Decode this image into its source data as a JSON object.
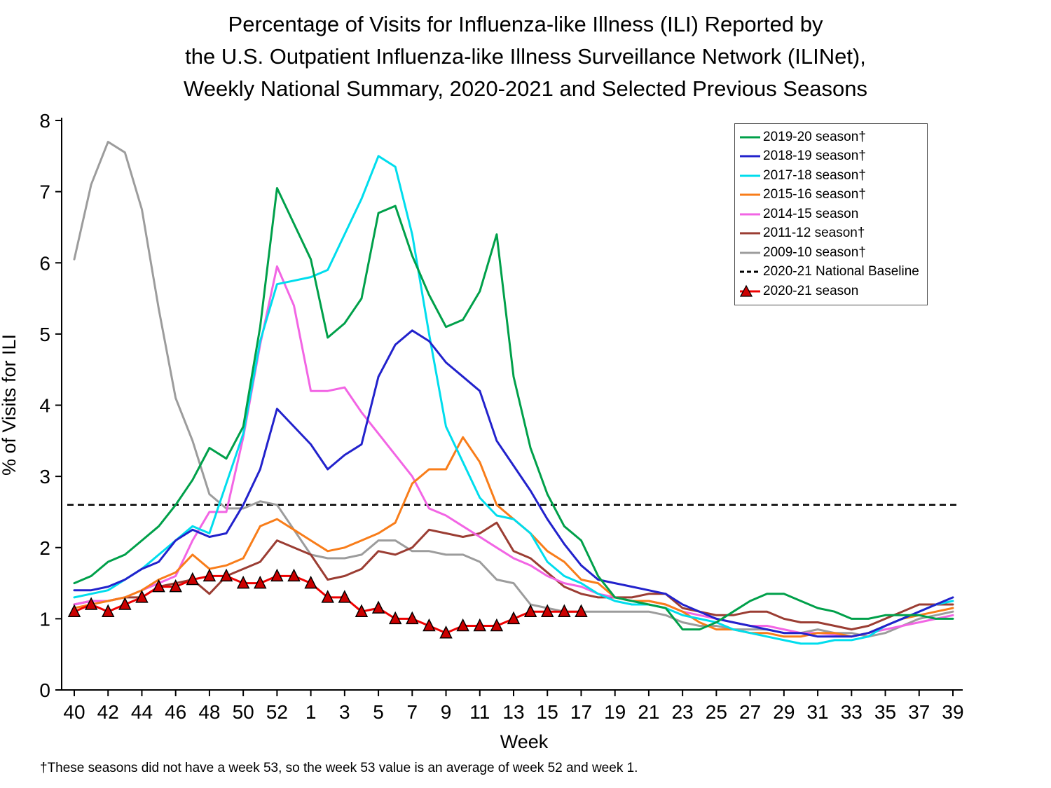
{
  "title": {
    "line1": "Percentage of Visits for Influenza-like Illness (ILI) Reported by",
    "line2": "the U.S. Outpatient Influenza-like Illness Surveillance Network (ILINet),",
    "line3": "Weekly National Summary, 2020-2021 and Selected Previous Seasons"
  },
  "footnote": "†These seasons did not have a week 53, so the week 53 value is an average of week 52 and week 1.",
  "chart_data": {
    "type": "line",
    "xlabel": "Week",
    "ylabel": "% of Visits for ILI",
    "ylim": [
      0,
      8
    ],
    "y_ticks": [
      0,
      1,
      2,
      3,
      4,
      5,
      6,
      7,
      8
    ],
    "grid": false,
    "legend_position": "top-right",
    "weeks": [
      "40",
      "41",
      "42",
      "43",
      "44",
      "45",
      "46",
      "47",
      "48",
      "49",
      "50",
      "51",
      "52",
      "53",
      "1",
      "2",
      "3",
      "4",
      "5",
      "6",
      "7",
      "8",
      "9",
      "10",
      "11",
      "12",
      "13",
      "14",
      "15",
      "16",
      "17",
      "18",
      "19",
      "20",
      "21",
      "22",
      "23",
      "24",
      "25",
      "26",
      "27",
      "28",
      "29",
      "30",
      "31",
      "32",
      "33",
      "34",
      "35",
      "36",
      "37",
      "38",
      "39"
    ],
    "x_tick_labels": [
      "40",
      "42",
      "44",
      "46",
      "48",
      "50",
      "52",
      "1",
      "3",
      "5",
      "7",
      "9",
      "11",
      "13",
      "15",
      "17",
      "19",
      "21",
      "23",
      "25",
      "27",
      "29",
      "31",
      "33",
      "35",
      "37",
      "39"
    ],
    "series": [
      {
        "name": "2019-20 season†",
        "color": "#00a04a",
        "values": [
          1.5,
          1.6,
          1.8,
          1.9,
          2.1,
          2.3,
          2.6,
          2.95,
          3.4,
          3.25,
          3.7,
          5.1,
          7.05,
          6.55,
          6.05,
          4.95,
          5.15,
          5.5,
          6.7,
          6.8,
          6.1,
          5.55,
          5.1,
          5.2,
          5.6,
          6.4,
          4.4,
          3.4,
          2.75,
          2.3,
          2.1,
          1.6,
          1.3,
          1.25,
          1.2,
          1.15,
          0.85,
          0.85,
          0.95,
          1.1,
          1.25,
          1.35,
          1.35,
          1.25,
          1.15,
          1.1,
          1.0,
          1.0,
          1.05,
          1.05,
          1.05,
          1.0,
          1.0
        ]
      },
      {
        "name": "2018-19 season†",
        "color": "#2222cc",
        "values": [
          1.4,
          1.4,
          1.45,
          1.55,
          1.7,
          1.8,
          2.1,
          2.25,
          2.15,
          2.2,
          2.6,
          3.1,
          3.95,
          3.7,
          3.45,
          3.1,
          3.3,
          3.45,
          4.4,
          4.85,
          5.05,
          4.9,
          4.6,
          4.4,
          4.2,
          3.5,
          3.15,
          2.8,
          2.4,
          2.05,
          1.75,
          1.55,
          1.5,
          1.45,
          1.4,
          1.35,
          1.2,
          1.1,
          1.0,
          0.95,
          0.9,
          0.85,
          0.8,
          0.8,
          0.75,
          0.75,
          0.75,
          0.8,
          0.9,
          1.0,
          1.1,
          1.2,
          1.3
        ]
      },
      {
        "name": "2017-18 season†",
        "color": "#00dded",
        "values": [
          1.3,
          1.35,
          1.4,
          1.55,
          1.7,
          1.9,
          2.1,
          2.3,
          2.2,
          2.9,
          3.6,
          4.9,
          5.7,
          5.75,
          5.8,
          5.9,
          6.4,
          6.9,
          7.5,
          7.35,
          6.4,
          5.0,
          3.7,
          3.2,
          2.7,
          2.45,
          2.4,
          2.2,
          1.8,
          1.6,
          1.5,
          1.35,
          1.25,
          1.2,
          1.2,
          1.15,
          1.05,
          1.0,
          0.95,
          0.85,
          0.8,
          0.75,
          0.7,
          0.65,
          0.65,
          0.7,
          0.7,
          0.75,
          0.9,
          1.0,
          1.1,
          1.2,
          1.25
        ]
      },
      {
        "name": "2015-16 season†",
        "color": "#f87d1a",
        "values": [
          1.15,
          1.2,
          1.25,
          1.3,
          1.4,
          1.55,
          1.65,
          1.9,
          1.7,
          1.75,
          1.85,
          2.3,
          2.4,
          2.25,
          2.1,
          1.95,
          2.0,
          2.1,
          2.2,
          2.35,
          2.9,
          3.1,
          3.1,
          3.55,
          3.2,
          2.6,
          2.4,
          2.2,
          1.95,
          1.8,
          1.55,
          1.5,
          1.3,
          1.25,
          1.25,
          1.2,
          1.1,
          0.95,
          0.85,
          0.85,
          0.8,
          0.8,
          0.75,
          0.75,
          0.8,
          0.8,
          0.75,
          0.8,
          0.9,
          1.0,
          1.05,
          1.1,
          1.15
        ]
      },
      {
        "name": "2014-15 season",
        "color": "#f265e4",
        "values": [
          1.2,
          1.25,
          1.25,
          1.3,
          1.4,
          1.5,
          1.6,
          2.1,
          2.5,
          2.5,
          3.55,
          4.85,
          5.95,
          5.4,
          4.2,
          4.2,
          4.25,
          3.9,
          3.6,
          3.3,
          3.0,
          2.55,
          2.45,
          2.3,
          2.15,
          2.0,
          1.85,
          1.75,
          1.6,
          1.5,
          1.45,
          1.35,
          1.3,
          1.25,
          1.25,
          1.2,
          1.1,
          1.05,
          1.0,
          0.95,
          0.9,
          0.9,
          0.85,
          0.8,
          0.8,
          0.78,
          0.75,
          0.8,
          0.85,
          0.9,
          0.95,
          1.0,
          1.05
        ]
      },
      {
        "name": "2011-12 season†",
        "color": "#9b3d33",
        "values": [
          1.2,
          1.25,
          1.25,
          1.3,
          1.3,
          1.45,
          1.5,
          1.55,
          1.35,
          1.6,
          1.7,
          1.8,
          2.1,
          2.0,
          1.9,
          1.55,
          1.6,
          1.7,
          1.95,
          1.9,
          2.0,
          2.25,
          2.2,
          2.15,
          2.2,
          2.35,
          1.95,
          1.85,
          1.65,
          1.45,
          1.35,
          1.3,
          1.3,
          1.3,
          1.35,
          1.35,
          1.15,
          1.1,
          1.05,
          1.05,
          1.1,
          1.1,
          1.0,
          0.95,
          0.95,
          0.9,
          0.85,
          0.9,
          1.0,
          1.1,
          1.2,
          1.2,
          1.2
        ]
      },
      {
        "name": "2009-10 season†",
        "color": "#9c9c9c",
        "values": [
          6.05,
          7.1,
          7.7,
          7.55,
          6.75,
          5.35,
          4.1,
          3.5,
          2.75,
          2.55,
          2.55,
          2.65,
          2.6,
          2.25,
          1.9,
          1.85,
          1.85,
          1.9,
          2.1,
          2.1,
          1.95,
          1.95,
          1.9,
          1.9,
          1.8,
          1.55,
          1.5,
          1.2,
          1.15,
          1.1,
          1.1,
          1.1,
          1.1,
          1.1,
          1.1,
          1.05,
          0.95,
          0.9,
          0.9,
          0.85,
          0.85,
          0.85,
          0.8,
          0.8,
          0.85,
          0.8,
          0.8,
          0.75,
          0.8,
          0.9,
          1.0,
          1.05,
          1.1
        ]
      },
      {
        "name": "2020-21 National Baseline",
        "color": "#000000",
        "style": "dashed",
        "constant": 2.6
      },
      {
        "name": "2020-21 season",
        "color": "#ee0000",
        "marker": "triangle",
        "marker_fill": "#cc0000",
        "values": [
          1.1,
          1.2,
          1.1,
          1.2,
          1.3,
          1.45,
          1.45,
          1.55,
          1.6,
          1.6,
          1.5,
          1.5,
          1.6,
          1.6,
          1.5,
          1.3,
          1.3,
          1.1,
          1.15,
          1.0,
          1.0,
          0.9,
          0.8,
          0.9,
          0.9,
          0.9,
          1.0,
          1.1,
          1.1,
          1.1,
          1.1,
          null,
          null,
          null,
          null,
          null,
          null,
          null,
          null,
          null,
          null,
          null,
          null,
          null,
          null,
          null,
          null,
          null,
          null,
          null,
          null,
          null,
          null
        ]
      }
    ]
  }
}
